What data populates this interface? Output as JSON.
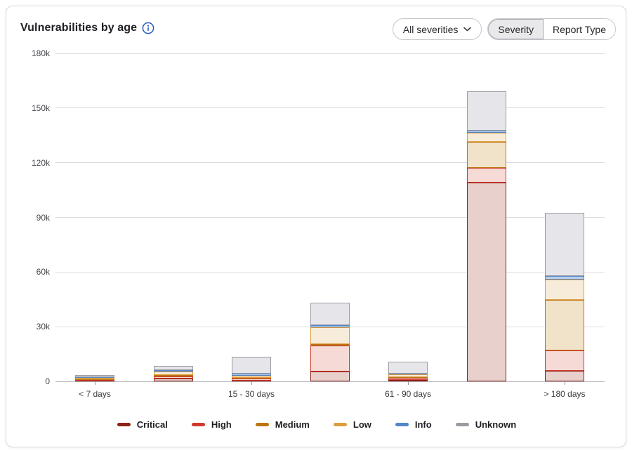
{
  "header": {
    "title": "Vulnerabilities by age",
    "filter_dropdown": {
      "value": "All severities"
    },
    "view_toggle": {
      "options": [
        {
          "label": "Severity",
          "selected": true
        },
        {
          "label": "Report Type",
          "selected": false
        }
      ]
    }
  },
  "chart_data": {
    "type": "bar",
    "stacked": true,
    "title": "Vulnerabilities by age",
    "unit": "vulnerability count, values in thousands (k)",
    "categories": [
      "< 7 days",
      "",
      "15 - 30 days",
      "",
      "61 - 90 days",
      "",
      "> 180 days"
    ],
    "x_tick_labels_shown": [
      "< 7 days",
      "15 - 30 days",
      "61 - 90 days",
      "> 180 days"
    ],
    "y_axis": {
      "ticks_top_to_bottom": [
        "180k",
        "150k",
        "120k",
        "90k",
        "60k",
        "30k",
        "0"
      ],
      "tick_values_k": [
        180,
        150,
        120,
        90,
        60,
        30,
        0
      ],
      "max_k": 180,
      "grid": true
    },
    "series": [
      {
        "name": "Critical",
        "stroke": "#8e2217",
        "fill": "#e8d1cc",
        "values_k": [
          0.3,
          1.4,
          0.5,
          5.3,
          0.8,
          109.0,
          5.9
        ]
      },
      {
        "name": "High",
        "stroke": "#cf392c",
        "fill": "#f6dad5",
        "values_k": [
          0.5,
          1.4,
          0.9,
          14.5,
          1.2,
          8.0,
          11.0
        ]
      },
      {
        "name": "Medium",
        "stroke": "#bd7513",
        "fill": "#f1e3ca",
        "values_k": [
          0.2,
          0.6,
          0.6,
          0.8,
          0.3,
          14.5,
          28.0
        ]
      },
      {
        "name": "Low",
        "stroke": "#dd9c3e",
        "fill": "#f7ecd9",
        "values_k": [
          0.8,
          1.9,
          1.2,
          9.0,
          1.5,
          5.0,
          11.0
        ]
      },
      {
        "name": "Info",
        "stroke": "#5287ca",
        "fill": "#b9d1ee",
        "values_k": [
          0.5,
          0.9,
          1.0,
          1.2,
          0.5,
          1.0,
          2.0
        ]
      },
      {
        "name": "Unknown",
        "stroke": "#9b9ba3",
        "fill": "#e6e5e9",
        "values_k": [
          1.2,
          2.3,
          9.3,
          12.5,
          6.4,
          21.5,
          34.6
        ]
      }
    ],
    "approx_totals_k": [
      3.5,
      8.5,
      13.5,
      43.3,
      10.7,
      159.0,
      92.5
    ],
    "legend": [
      "Critical",
      "High",
      "Medium",
      "Low",
      "Info",
      "Unknown"
    ],
    "legend_position": "bottom"
  },
  "colors": {
    "grid": "#dcdce0",
    "axis_zero_line": "#b4b4ba",
    "info_icon_blue": "#2456c4",
    "selected_segment_bg": "#e9e9ec"
  }
}
